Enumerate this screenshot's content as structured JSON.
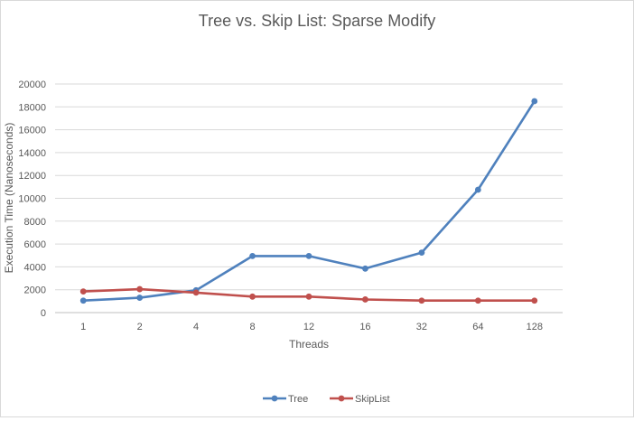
{
  "chart_data": {
    "type": "line",
    "title": "Tree vs. Skip List: Sparse Modify",
    "xlabel": "Threads",
    "ylabel": "Execution Time (Nanoseconds)",
    "categories": [
      "1",
      "2",
      "4",
      "8",
      "12",
      "16",
      "32",
      "64",
      "128"
    ],
    "ylim": [
      0,
      20000
    ],
    "yticks": [
      0,
      2000,
      4000,
      6000,
      8000,
      10000,
      12000,
      14000,
      16000,
      18000,
      20000
    ],
    "grid": true,
    "legend_position": "bottom",
    "series": [
      {
        "name": "Tree",
        "color": "#4f81bd",
        "values": [
          1050,
          1300,
          1950,
          4950,
          4950,
          3850,
          5250,
          10750,
          18500
        ]
      },
      {
        "name": "SkipList",
        "color": "#c0504d",
        "values": [
          1850,
          2050,
          1750,
          1400,
          1400,
          1150,
          1050,
          1050,
          1050
        ]
      }
    ]
  }
}
